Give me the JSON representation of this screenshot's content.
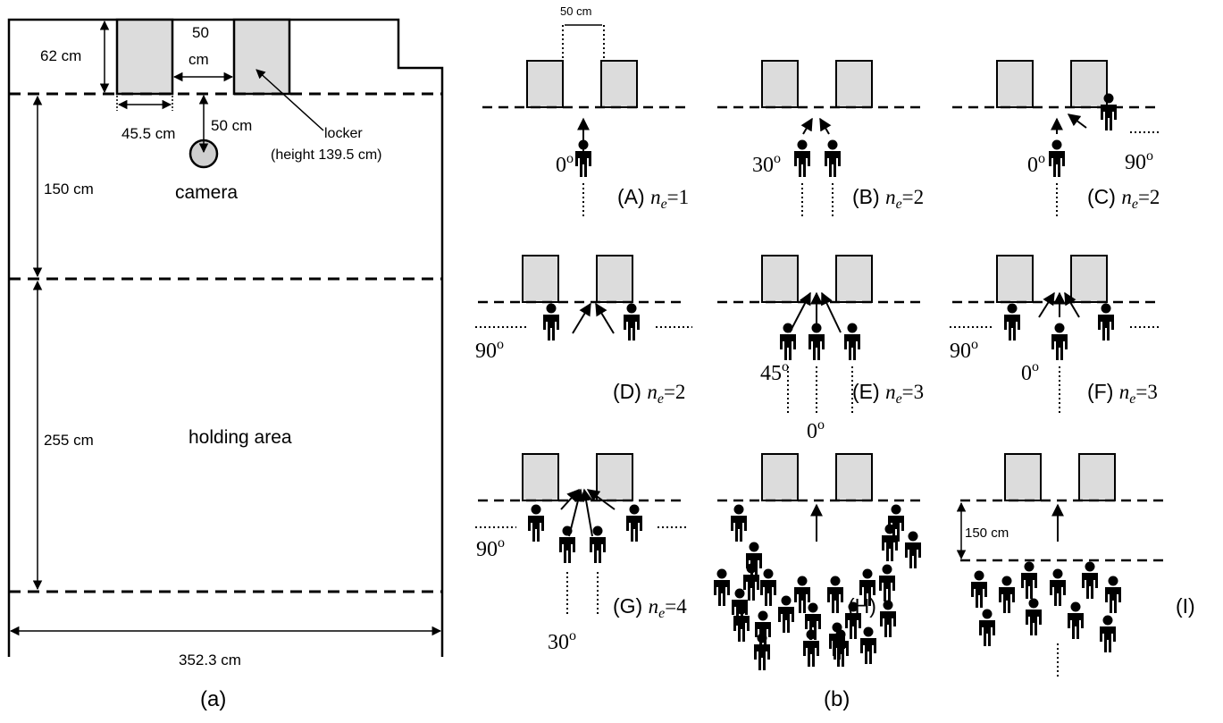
{
  "colors": {
    "locker_fill": "#dcdcdc",
    "camera_fill": "#cfcfcf",
    "stroke": "#000000"
  },
  "panel_a": {
    "caption": "(a)",
    "dim_62": "62 cm",
    "dim_50_top": "50",
    "dim_50_top2": "cm",
    "dim_455": "45.5 cm",
    "dim_50_cam": "50 cm",
    "locker_label": "locker",
    "locker_height": "(height 139.5 cm)",
    "camera_label": "camera",
    "dim_150": "150 cm",
    "dim_255": "255 cm",
    "holding_area": "holding area",
    "dim_width": "352.3 cm"
  },
  "panel_b": {
    "caption": "(b)",
    "spacing_label": "50 cm",
    "scenarios": {
      "A": {
        "label": "(A)",
        "ne": "1",
        "angles": [
          "0o"
        ]
      },
      "B": {
        "label": "(B)",
        "ne": "2",
        "angles": [
          "30o"
        ]
      },
      "C": {
        "label": "(C)",
        "ne": "2",
        "angles": [
          "0o",
          "90o"
        ]
      },
      "D": {
        "label": "(D)",
        "ne": "2",
        "angles": [
          "90o"
        ]
      },
      "E": {
        "label": "(E)",
        "ne": "3",
        "angles": [
          "45o",
          "0o"
        ]
      },
      "F": {
        "label": "(F)",
        "ne": "3",
        "angles": [
          "90o",
          "0o"
        ]
      },
      "G": {
        "label": "(G)",
        "ne": "4",
        "angles": [
          "90o",
          "30o"
        ]
      },
      "H": {
        "label": "(H)"
      },
      "I": {
        "label": "(I)",
        "dist_label": "150 cm"
      }
    }
  }
}
